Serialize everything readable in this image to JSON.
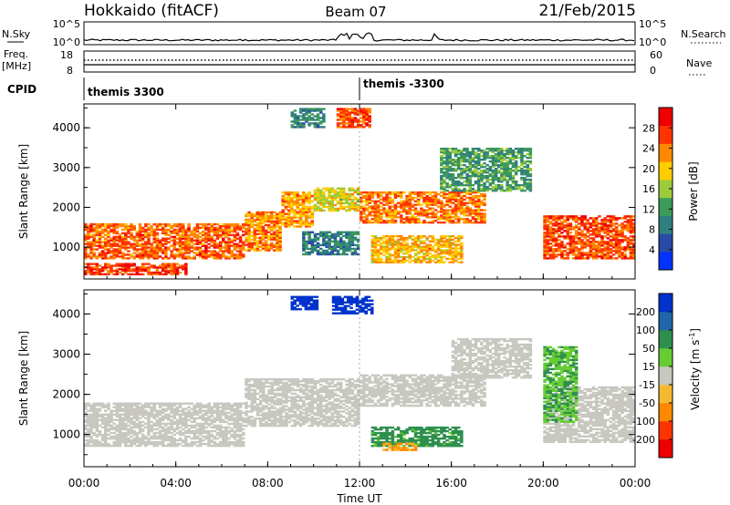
{
  "header": {
    "title": "Hokkaido (fitACF)",
    "beam": "Beam 07",
    "date": "21/Feb/2015"
  },
  "strips": {
    "nsky_label": "N.Sky",
    "nsky_ticks": [
      "10^5",
      "10^0"
    ],
    "nsearch_label": "N.Search",
    "nsearch_ticks": [
      "10^5",
      "10^0"
    ],
    "freq_label": [
      "Freq.",
      "[MHz]"
    ],
    "freq_ticks": [
      "18",
      "8"
    ],
    "nave_label": "Nave",
    "nave_ticks": [
      "60",
      "0"
    ],
    "cpid_label": "CPID",
    "cpid_segments": [
      "themis 3300",
      "themis -3300"
    ],
    "cpid_change_time": 12.0
  },
  "chart_data": [
    {
      "type": "heatmap",
      "parameter": "power",
      "ylabel": "Slant Range [km]",
      "xlabel": "",
      "x_ticks": [
        "00:00",
        "04:00",
        "08:00",
        "12:00",
        "16:00",
        "20:00",
        "00:00"
      ],
      "x_tick_values": [
        0,
        4,
        8,
        12,
        16,
        20,
        24
      ],
      "xlim": [
        0,
        24
      ],
      "y_ticks": [
        1000,
        2000,
        3000,
        4000
      ],
      "ylim": [
        200,
        4600
      ],
      "colorbar": {
        "label": "Power [dB]",
        "ticks": [
          4,
          8,
          12,
          16,
          20,
          24,
          28
        ],
        "range": [
          0,
          32
        ],
        "colors": [
          "#0033ff",
          "#2a4aa8",
          "#2f7f7f",
          "#3c9a5a",
          "#9ccc3a",
          "#ffcc00",
          "#ff8800",
          "#ff3300",
          "#ee0000"
        ]
      },
      "features": [
        {
          "t0": 0.0,
          "t1": 7.0,
          "r0": 700,
          "r1": 1600,
          "level": 25
        },
        {
          "t0": 7.0,
          "t1": 8.6,
          "r0": 900,
          "r1": 1900,
          "level": 23
        },
        {
          "t0": 8.6,
          "t1": 10.0,
          "r0": 1500,
          "r1": 2400,
          "level": 22
        },
        {
          "t0": 10.0,
          "t1": 12.0,
          "r0": 1900,
          "r1": 2500,
          "level": 18
        },
        {
          "t0": 12.0,
          "t1": 17.5,
          "r0": 1600,
          "r1": 2400,
          "level": 24
        },
        {
          "t0": 15.5,
          "t1": 19.5,
          "r0": 2400,
          "r1": 3500,
          "level": 12
        },
        {
          "t0": 12.5,
          "t1": 16.5,
          "r0": 600,
          "r1": 1300,
          "level": 21
        },
        {
          "t0": 9.5,
          "t1": 12.0,
          "r0": 800,
          "r1": 1400,
          "level": 9
        },
        {
          "t0": 11.0,
          "t1": 12.5,
          "r0": 4000,
          "r1": 4500,
          "level": 26
        },
        {
          "t0": 9.0,
          "t1": 10.5,
          "r0": 4000,
          "r1": 4500,
          "level": 10
        },
        {
          "t0": 20.0,
          "t1": 24.0,
          "r0": 700,
          "r1": 1800,
          "level": 26
        },
        {
          "t0": 0.0,
          "t1": 4.5,
          "r0": 300,
          "r1": 600,
          "level": 27
        }
      ]
    },
    {
      "type": "heatmap",
      "parameter": "velocity",
      "ylabel": "Slant Range [km]",
      "xlabel": "Time UT",
      "x_ticks": [
        "00:00",
        "04:00",
        "08:00",
        "12:00",
        "16:00",
        "20:00",
        "00:00"
      ],
      "x_tick_values": [
        0,
        4,
        8,
        12,
        16,
        20,
        24
      ],
      "xlim": [
        0,
        24
      ],
      "y_ticks": [
        1000,
        2000,
        3000,
        4000
      ],
      "ylim": [
        200,
        4600
      ],
      "colorbar": {
        "label": "Velocity [m s",
        "label_sup": "-1",
        "label_end": "]",
        "ticks": [
          "200",
          "100",
          "50",
          "15",
          "-15",
          "-50",
          "-100",
          "-200"
        ],
        "colors": [
          "#0033cc",
          "#1f66aa",
          "#2f8f4f",
          "#66cc33",
          "#c8c8c0",
          "#f5b830",
          "#ff8800",
          "#ff3300",
          "#ee0000"
        ]
      },
      "features": [
        {
          "t0": 0.0,
          "t1": 7.0,
          "r0": 700,
          "r1": 1800,
          "vel": 0
        },
        {
          "t0": 7.0,
          "t1": 12.0,
          "r0": 1200,
          "r1": 2400,
          "vel": 0
        },
        {
          "t0": 12.0,
          "t1": 17.5,
          "r0": 1700,
          "r1": 2500,
          "vel": 0
        },
        {
          "t0": 16.0,
          "t1": 19.5,
          "r0": 2400,
          "r1": 3400,
          "vel": 0
        },
        {
          "t0": 20.0,
          "t1": 24.0,
          "r0": 800,
          "r1": 2200,
          "vel": 0
        },
        {
          "t0": 10.8,
          "t1": 12.6,
          "r0": 4000,
          "r1": 4450,
          "vel": 220
        },
        {
          "t0": 9.0,
          "t1": 10.2,
          "r0": 4100,
          "r1": 4450,
          "vel": 180
        },
        {
          "t0": 20.0,
          "t1": 21.5,
          "r0": 1300,
          "r1": 3200,
          "vel": 30
        },
        {
          "t0": 12.5,
          "t1": 16.5,
          "r0": 700,
          "r1": 1200,
          "vel": 40
        },
        {
          "t0": 13.0,
          "t1": 14.5,
          "r0": 600,
          "r1": 800,
          "vel": -30
        }
      ]
    }
  ],
  "colors": {
    "axis": "#000000",
    "background": "#ffffff"
  }
}
